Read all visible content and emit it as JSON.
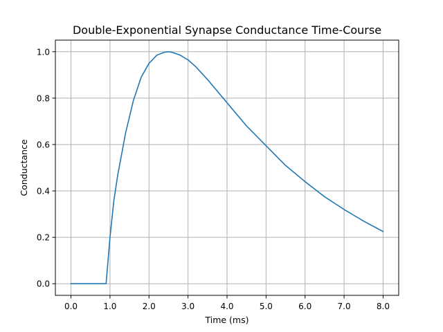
{
  "chart_data": {
    "type": "line",
    "title": "Double-Exponential Synapse Conductance Time-Course",
    "xlabel": "Time (ms)",
    "ylabel": "Conductance",
    "xlim": [
      -0.4,
      8.4
    ],
    "ylim": [
      -0.05,
      1.05
    ],
    "grid": true,
    "x_ticks": [
      0,
      1,
      2,
      3,
      4,
      5,
      6,
      7,
      8
    ],
    "x_tick_labels": [
      "0.0",
      "1.0",
      "2.0",
      "3.0",
      "4.0",
      "5.0",
      "6.0",
      "7.0",
      "8.0"
    ],
    "y_ticks": [
      0,
      0.2,
      0.4,
      0.6,
      0.8,
      1.0
    ],
    "y_tick_labels": [
      "0.0",
      "0.2",
      "0.4",
      "0.6",
      "0.8",
      "1.0"
    ],
    "series": [
      {
        "color": "#1f77b4",
        "x": [
          0.0,
          0.5,
          0.9,
          1.0,
          1.1,
          1.2,
          1.4,
          1.6,
          1.8,
          2.0,
          2.2,
          2.4,
          2.5,
          2.6,
          2.8,
          3.0,
          3.2,
          3.5,
          3.8,
          4.0,
          4.5,
          5.0,
          5.5,
          6.0,
          6.5,
          7.0,
          7.5,
          8.0
        ],
        "y": [
          0.0,
          0.0,
          0.0,
          0.2,
          0.36,
          0.47,
          0.65,
          0.79,
          0.89,
          0.95,
          0.985,
          0.998,
          1.0,
          0.997,
          0.985,
          0.965,
          0.935,
          0.88,
          0.82,
          0.78,
          0.68,
          0.595,
          0.51,
          0.44,
          0.375,
          0.32,
          0.27,
          0.225
        ]
      }
    ]
  }
}
